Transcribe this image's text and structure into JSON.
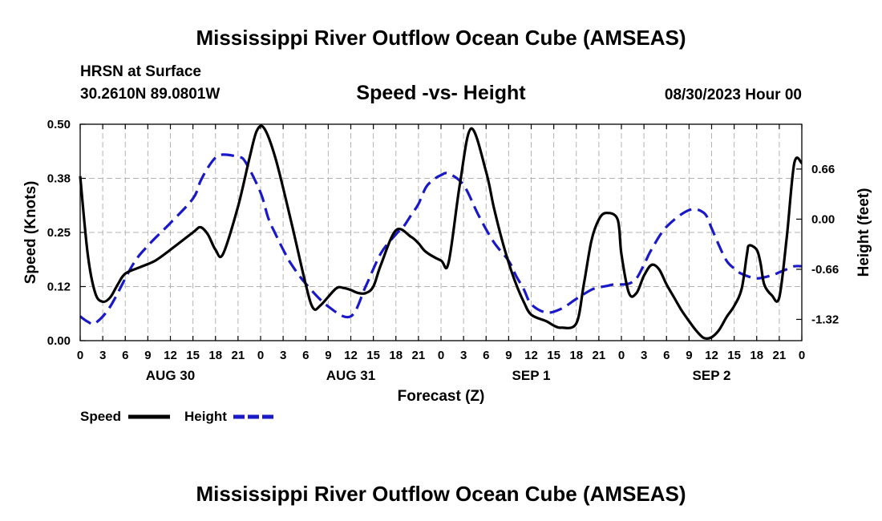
{
  "colors": {
    "speed": "#000000",
    "height": "#1919c8",
    "grid": "#b3b3b3"
  },
  "chart_data": {
    "type": "line",
    "title": "Mississippi River Outflow Ocean Cube (AMSEAS)",
    "footer_title": "Mississippi River Outflow Ocean Cube (AMSEAS)",
    "subtitle": "Speed -vs- Height",
    "station": "HRSN at Surface",
    "coordinates": "30.2610N  89.0801W",
    "run_time": "08/30/2023 Hour 00",
    "xlabel": "Forecast (Z)",
    "ylabel_left": "Speed (Knots)",
    "ylabel_right": "Height (feet)",
    "x_range": [
      0,
      96
    ],
    "y_left_range": [
      0,
      0.5
    ],
    "y_right_range": [
      -1.6,
      1.25
    ],
    "x_ticks": [
      0,
      3,
      6,
      9,
      12,
      15,
      18,
      21,
      24,
      27,
      30,
      33,
      36,
      39,
      42,
      45,
      48,
      51,
      54,
      57,
      60,
      63,
      66,
      69,
      72,
      75,
      78,
      81,
      84,
      87,
      90,
      93,
      96
    ],
    "x_tick_labels": [
      "0",
      "3",
      "6",
      "9",
      "12",
      "15",
      "18",
      "21",
      "0",
      "3",
      "6",
      "9",
      "12",
      "15",
      "18",
      "21",
      "0",
      "3",
      "6",
      "9",
      "12",
      "15",
      "18",
      "21",
      "0",
      "3",
      "6",
      "9",
      "12",
      "15",
      "18",
      "21",
      "0"
    ],
    "day_labels": [
      {
        "x": 12,
        "label": "AUG 30"
      },
      {
        "x": 36,
        "label": "AUG 31"
      },
      {
        "x": 60,
        "label": "SEP 1"
      },
      {
        "x": 84,
        "label": "SEP 2"
      }
    ],
    "y_left_ticks": [
      0,
      0.125,
      0.25,
      0.375,
      0.5
    ],
    "y_left_tick_labels": [
      "0.00",
      "0.12",
      "0.25",
      "0.38",
      "0.50"
    ],
    "y_right_ticks": [
      0.66,
      0.0,
      -0.66,
      -1.32
    ],
    "y_right_tick_labels": [
      "0.66",
      "0.00",
      "-0.66",
      "-1.32"
    ],
    "grid": true,
    "legend_position": "bottom-left",
    "series": [
      {
        "name": "Speed",
        "axis": "left",
        "style": "solid",
        "x": [
          0,
          1,
          2,
          3,
          4,
          5,
          6,
          8,
          10,
          12,
          15,
          16,
          17,
          18,
          19,
          21,
          22.5,
          23.5,
          24.5,
          26,
          28,
          30,
          31,
          32,
          34,
          35,
          36,
          37,
          38,
          39,
          40,
          42,
          44,
          45,
          46,
          48,
          49,
          50.5,
          52,
          54,
          55,
          56,
          57,
          58,
          59,
          60,
          62,
          63,
          64,
          66,
          67,
          68,
          69,
          70,
          71.5,
          72,
          73,
          74,
          75,
          76,
          77,
          78,
          79,
          80,
          81,
          82,
          83,
          84,
          85,
          86,
          87,
          88,
          88.7,
          89,
          90,
          90.5,
          91,
          92,
          93,
          94,
          95,
          96
        ],
        "values": [
          0.38,
          0.2,
          0.11,
          0.09,
          0.1,
          0.13,
          0.155,
          0.17,
          0.185,
          0.21,
          0.25,
          0.262,
          0.245,
          0.21,
          0.2,
          0.31,
          0.42,
          0.485,
          0.49,
          0.42,
          0.28,
          0.13,
          0.075,
          0.082,
          0.12,
          0.122,
          0.117,
          0.11,
          0.11,
          0.125,
          0.175,
          0.255,
          0.24,
          0.225,
          0.205,
          0.185,
          0.18,
          0.36,
          0.49,
          0.39,
          0.31,
          0.24,
          0.18,
          0.13,
          0.09,
          0.06,
          0.045,
          0.035,
          0.03,
          0.04,
          0.13,
          0.23,
          0.28,
          0.295,
          0.28,
          0.2,
          0.11,
          0.11,
          0.15,
          0.175,
          0.165,
          0.13,
          0.1,
          0.07,
          0.045,
          0.022,
          0.006,
          0.008,
          0.025,
          0.055,
          0.08,
          0.12,
          0.2,
          0.22,
          0.21,
          0.18,
          0.13,
          0.105,
          0.1,
          0.24,
          0.41,
          0.41
        ]
      },
      {
        "name": "Height",
        "axis": "right",
        "style": "dashed",
        "x": [
          0,
          1,
          2,
          4,
          7,
          9,
          12,
          15,
          16,
          17,
          18,
          19,
          21,
          22,
          24,
          25,
          26,
          27,
          28,
          30,
          33,
          36,
          38,
          40,
          42,
          43,
          44,
          45,
          46,
          47,
          48,
          49,
          51,
          53,
          55,
          57,
          58,
          59,
          60,
          62,
          64,
          66,
          68,
          69,
          70,
          71,
          72,
          73,
          74,
          75,
          76,
          78,
          81,
          83,
          84,
          85,
          86,
          87,
          88,
          90,
          92,
          93,
          94,
          95,
          96
        ],
        "values": [
          -1.28,
          -1.35,
          -1.37,
          -1.15,
          -0.6,
          -0.35,
          -0.05,
          0.27,
          0.5,
          0.68,
          0.81,
          0.85,
          0.82,
          0.75,
          0.35,
          0.02,
          -0.2,
          -0.4,
          -0.58,
          -0.85,
          -1.15,
          -1.28,
          -0.88,
          -0.45,
          -0.2,
          -0.1,
          0.05,
          0.2,
          0.42,
          0.52,
          0.58,
          0.6,
          0.45,
          0.05,
          -0.3,
          -0.55,
          -0.75,
          -0.92,
          -1.12,
          -1.23,
          -1.18,
          -1.05,
          -0.93,
          -0.9,
          -0.88,
          -0.86,
          -0.86,
          -0.85,
          -0.78,
          -0.6,
          -0.4,
          -0.1,
          0.12,
          0.08,
          -0.12,
          -0.35,
          -0.55,
          -0.65,
          -0.72,
          -0.78,
          -0.74,
          -0.7,
          -0.66,
          -0.62,
          -0.62
        ]
      }
    ]
  }
}
